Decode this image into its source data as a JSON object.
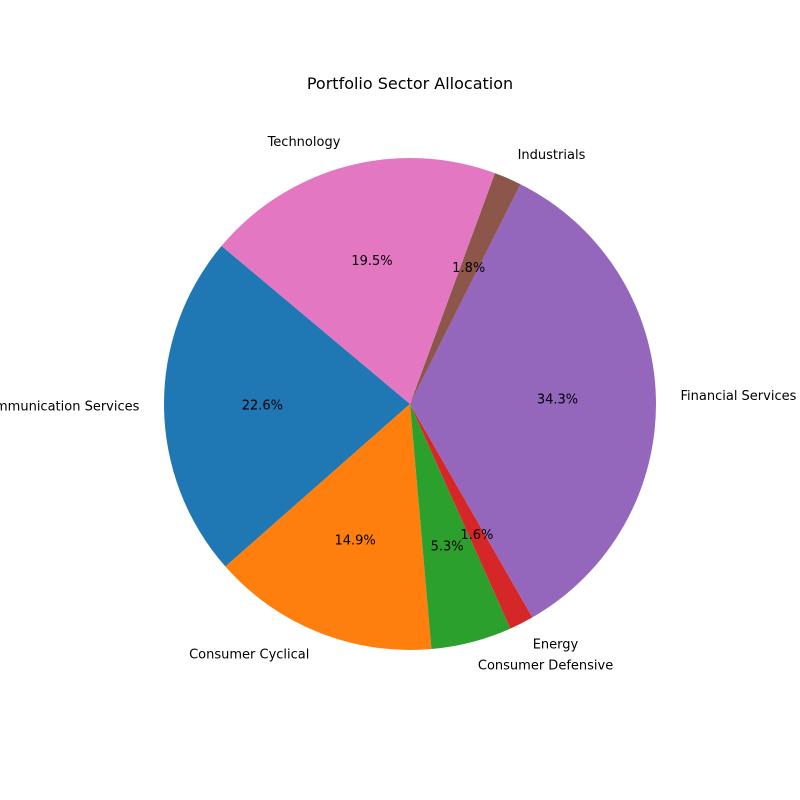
{
  "chart_data": {
    "type": "pie",
    "title": "Portfolio Sector Allocation",
    "start_angle_deg": 140,
    "direction": "counterclockwise",
    "slices": [
      {
        "label": "Communication Services",
        "value": 22.6,
        "pct_label": "22.6%",
        "color": "#1f77b4"
      },
      {
        "label": "Consumer Cyclical",
        "value": 14.9,
        "pct_label": "14.9%",
        "color": "#ff7f0e"
      },
      {
        "label": "Consumer Defensive",
        "value": 5.3,
        "pct_label": "5.3%",
        "color": "#2ca02c"
      },
      {
        "label": "Energy",
        "value": 1.6,
        "pct_label": "1.6%",
        "color": "#d62728"
      },
      {
        "label": "Financial Services",
        "value": 34.3,
        "pct_label": "34.3%",
        "color": "#9467bd"
      },
      {
        "label": "Industrials",
        "value": 1.8,
        "pct_label": "1.8%",
        "color": "#8c564b"
      },
      {
        "label": "Technology",
        "value": 19.5,
        "pct_label": "19.5%",
        "color": "#e377c2"
      }
    ]
  }
}
